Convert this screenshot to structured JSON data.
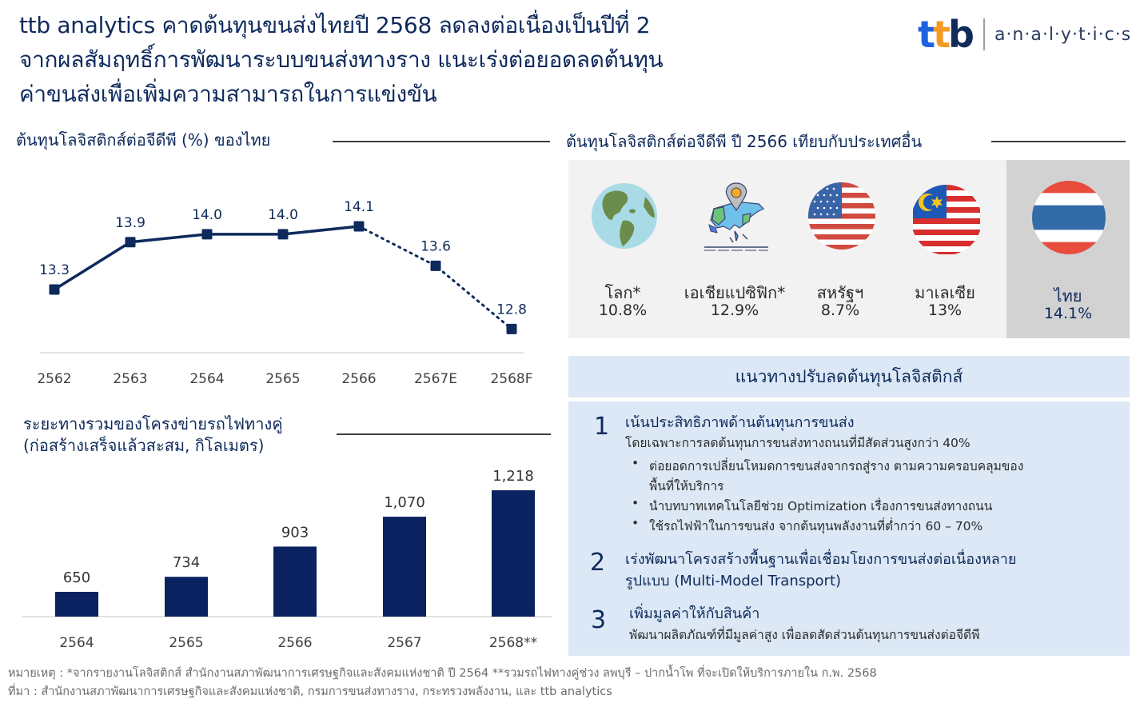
{
  "header": {
    "title_lines": [
      "ttb analytics คาดต้นทุนขนส่งไทยปี 2568 ลดลงต่อเนื่องเป็นปีที่ 2",
      "จากผลสัมฤทธิ์การพัฒนาระบบขนส่งทางราง แนะเร่งต่อยอดลดต้นทุน",
      "ค่าขนส่งเพื่อเพิ่มความสามารถในการแข่งขัน"
    ],
    "logo": {
      "mark_letters": [
        "t",
        "t",
        "b"
      ],
      "wordmark": "a·n·a·l·y·t·i·c·s",
      "colors": {
        "t1": "#1d63e0",
        "t2": "#f39a23",
        "b": "#112a5c"
      }
    }
  },
  "logistics_cost_section": {
    "title": "ต้นทุนโลจิสติกส์ต่อจีดีพี  (%) ของไทย"
  },
  "comparison_section": {
    "title": "ต้นทุนโลจิสติกส์ต่อจีดีพี  ปี 2566 เทียบกับประเทศอื่น",
    "countries": [
      {
        "icon": "globe-icon",
        "name": "โลก*",
        "value": "10.8%"
      },
      {
        "icon": "asia-pacific-map-icon",
        "name": "เอเชียแปซิฟิก*",
        "value": "12.9%"
      },
      {
        "icon": "usa-flag-icon",
        "name": "สหรัฐฯ",
        "value": "8.7%"
      },
      {
        "icon": "malaysia-flag-icon",
        "name": "มาเลเซีย",
        "value": "13%"
      },
      {
        "icon": "thailand-flag-icon",
        "name": "ไทย",
        "value": "14.1%",
        "highlight": true
      }
    ]
  },
  "railway_section": {
    "title_lines": [
      "ระยะทางรวมของโครงข่ายรถไฟทางคู่",
      "(ก่อสร้างเสร็จแล้วสะสม, กิโลเมตร)"
    ]
  },
  "guidance": {
    "title": "แนวทางปรับลดต้นทุนโลจิสติกส์",
    "items": [
      {
        "number": "1",
        "title": "เน้นประสิทธิภาพด้านต้นทุนการขนส่ง",
        "subtitle": "โดยเฉพาะการลดต้นทุนการขนส่งทางถนนที่มีสัดส่วนสูงกว่า 40%",
        "bullets": [
          "ต่อยอดการเปลี่ยนโหมดการขนส่งจากรถสู่ราง ตามความครอบคลุมของ",
          "พื้นที่ให้บริการ",
          "นำบทบาทเทคโนโลยีช่วย Optimization เรื่องการขนส่งทางถนน",
          "ใช้รถไฟฟ้าในการขนส่ง จากต้นทุนพลังงานที่ต่ำกว่า 60 – 70%"
        ]
      },
      {
        "number": "2",
        "title_lines": [
          "เร่งพัฒนาโครงสร้างพื้นฐานเพื่อเชื่อมโยงการขนส่งต่อเนื่องหลาย",
          "รูปแบบ (Multi-Model Transport)"
        ]
      },
      {
        "number": "3",
        "title": "เพิ่มมูลค่าให้กับสินค้า",
        "subtitle": "พัฒนาผลิตภัณฑ์ที่มีมูลค่าสูง  เพื่อลดสัดส่วนต้นทุนการขนส่งต่อจีดีพี"
      }
    ]
  },
  "footer": {
    "note": "หมายเหตุ : *จากรายงานโลจิสติกส์ สำนักงานสภาพัฒนาการเศรษฐกิจและสังคมแห่งชาติ ปี 2564  **รวมรถไฟทางคู่ช่วง ลพบุรี – ปากน้ำโพ ที่จะเปิดให้บริการภายใน ก.พ. 2568",
    "source": "ที่มา : สำนักงานสภาพัฒนาการเศรษฐกิจและสังคมแห่งชาติ, กรมการขนส่งทางราง, กระทรวงพลังงาน,  และ ttb analytics"
  },
  "colors": {
    "navy": "#0e2a5c",
    "bar": "#0a2260",
    "panel_gray": "#f2f2f2",
    "panel_thai": "#d2d2d2",
    "guide_bg": "#dce8f5"
  },
  "chart_data": [
    {
      "type": "line",
      "title": "ต้นทุนโลจิสติกส์ต่อจีดีพี (%) ของไทย",
      "categories": [
        "2562",
        "2563",
        "2564",
        "2565",
        "2566",
        "2567E",
        "2568F"
      ],
      "values": [
        13.3,
        13.9,
        14.0,
        14.0,
        14.1,
        13.6,
        12.8
      ],
      "labels": [
        "13.3",
        "13.9",
        "14.0",
        "14.0",
        "14.1",
        "13.6",
        "12.8"
      ],
      "series_style": {
        "solid_until_index": 4,
        "dotted_from_index": 4
      },
      "xlabel": "",
      "ylabel": "%",
      "ylim": [
        12.5,
        14.3
      ],
      "grid": false,
      "legend": "none"
    },
    {
      "type": "bar",
      "title": "ระยะทางรวมของโครงข่ายรถไฟทางคู่ (ก่อสร้างเสร็จแล้วสะสม, กิโลเมตร)",
      "categories": [
        "2564",
        "2565",
        "2566",
        "2567",
        "2568**"
      ],
      "values": [
        650,
        734,
        903,
        1070,
        1218
      ],
      "labels": [
        "650",
        "734",
        "903",
        "1,070",
        "1,218"
      ],
      "xlabel": "",
      "ylabel": "กิโลเมตร",
      "ylim": [
        0,
        1300
      ],
      "grid": false,
      "legend": "none"
    },
    {
      "type": "table",
      "title": "ต้นทุนโลจิสติกส์ต่อจีดีพี ปี 2566 เทียบกับประเทศอื่น",
      "categories": [
        "โลก*",
        "เอเชียแปซิฟิก*",
        "สหรัฐฯ",
        "มาเลเซีย",
        "ไทย"
      ],
      "values": [
        10.8,
        12.9,
        8.7,
        13,
        14.1
      ]
    }
  ]
}
